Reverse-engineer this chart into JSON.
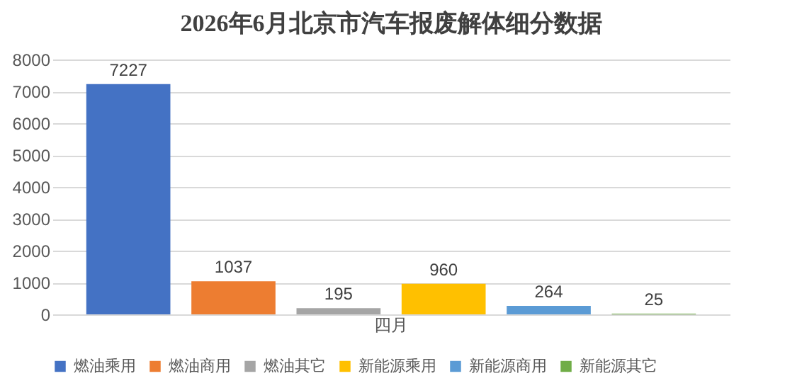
{
  "chart_data": {
    "type": "bar",
    "title": "2026年6月北京市汽车报废解体细分数据",
    "categories": [
      "四月"
    ],
    "series": [
      {
        "name": "燃油乘用",
        "color": "#4472c4",
        "values": [
          7227
        ]
      },
      {
        "name": "燃油商用",
        "color": "#ed7d31",
        "values": [
          1037
        ]
      },
      {
        "name": "燃油其它",
        "color": "#a5a5a5",
        "values": [
          195
        ]
      },
      {
        "name": "新能源乘用",
        "color": "#ffc000",
        "values": [
          960
        ]
      },
      {
        "name": "新能源商用",
        "color": "#5b9bd5",
        "values": [
          264
        ]
      },
      {
        "name": "新能源其它",
        "color": "#70ad47",
        "values": [
          25
        ]
      }
    ],
    "ylim": [
      0,
      8000
    ],
    "yticks": [
      0,
      1000,
      2000,
      3000,
      4000,
      5000,
      6000,
      7000,
      8000
    ],
    "grid": "y",
    "legend": "bottom",
    "data_labels": true
  }
}
